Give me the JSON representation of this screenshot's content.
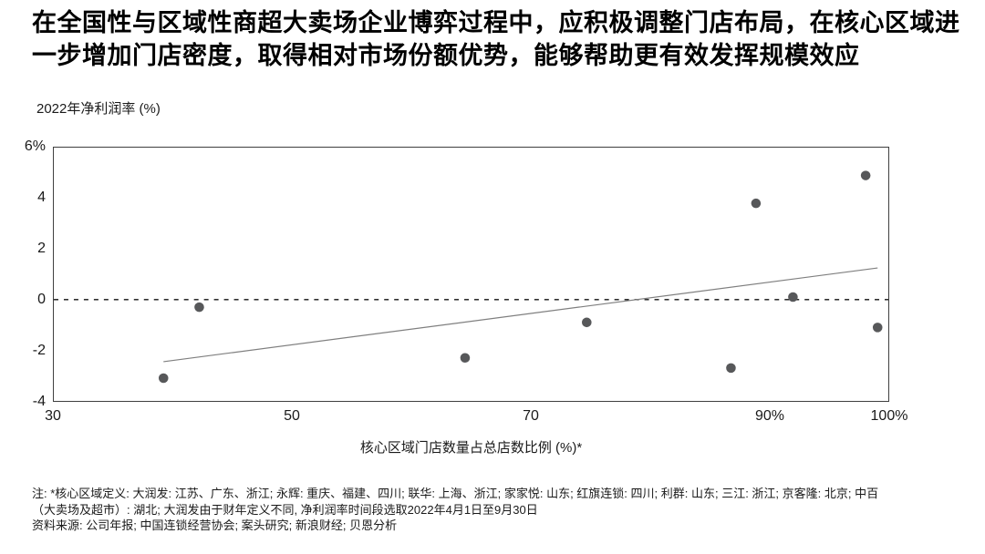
{
  "title": {
    "text": "在全国性与区域性商超大卖场企业博弈过程中，应积极调整门店布局，在核心区域进一步增加门店密度，取得相对市场份额优势，能够帮助更有效发挥规模效应"
  },
  "chart_data": {
    "type": "scatter",
    "y_axis_title": "2022年净利润率 (%)",
    "x_axis_title": "核心区域门店数量占总店数比例 (%)*",
    "x_range": [
      30,
      100
    ],
    "y_range": [
      -4,
      6
    ],
    "grid": false,
    "legend": false,
    "x_ticks": [
      {
        "value": 30,
        "label": "30"
      },
      {
        "value": 50,
        "label": "50"
      },
      {
        "value": 70,
        "label": "70"
      },
      {
        "value": 90,
        "label": "90%"
      },
      {
        "value": 100,
        "label": "100%"
      }
    ],
    "y_ticks": [
      {
        "value": 6,
        "label": "6%"
      },
      {
        "value": 4,
        "label": "4"
      },
      {
        "value": 2,
        "label": "2"
      },
      {
        "value": 0,
        "label": "0"
      },
      {
        "value": -2,
        "label": "-2"
      },
      {
        "value": -4,
        "label": "-4"
      }
    ],
    "zero_line": {
      "y": 0,
      "style": "dashed",
      "color": "#111111"
    },
    "points": [
      {
        "x": 39.2,
        "y": -3.1
      },
      {
        "x": 42.2,
        "y": -0.3
      },
      {
        "x": 64.5,
        "y": -2.3
      },
      {
        "x": 74.7,
        "y": -0.9
      },
      {
        "x": 86.8,
        "y": -2.7
      },
      {
        "x": 88.9,
        "y": 3.8
      },
      {
        "x": 92.0,
        "y": 0.1
      },
      {
        "x": 98.1,
        "y": 4.9
      },
      {
        "x": 99.1,
        "y": -1.1
      }
    ],
    "trend_line": {
      "x1": 39.2,
      "y1": -2.45,
      "x2": 99.1,
      "y2": 1.25
    },
    "point_color": "#57585a",
    "point_radius": 5.3,
    "trend_color": "#7f7f7f"
  },
  "footnotes": {
    "line1": "注: *核心区域定义: 大润发: 江苏、广东、浙江; 永辉: 重庆、福建、四川; 联华: 上海、浙江; 家家悦: 山东; 红旗连锁: 四川; 利群: 山东; 三江: 浙江; 京客隆: 北京;  中百",
    "line2": "（大卖场及超市）: 湖北; 大润发由于财年定义不同, 净利润率时间段选取2022年4月1日至9月30日",
    "line3": "资料来源: 公司年报; 中国连锁经营协会; 案头研究; 新浪财经; 贝恩分析"
  }
}
